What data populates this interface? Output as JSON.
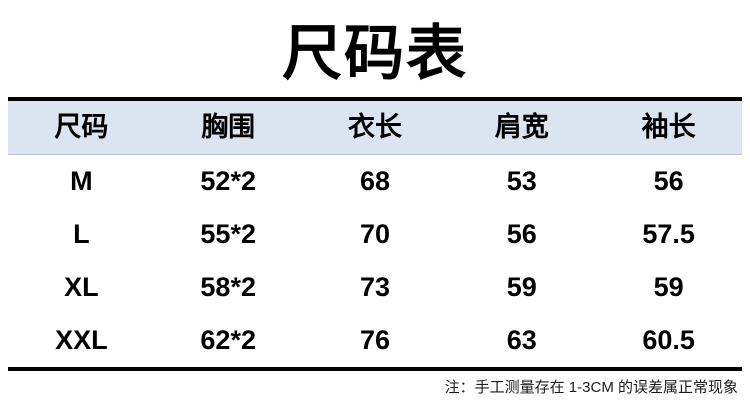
{
  "chart_data": {
    "type": "table",
    "title": "尺码表",
    "columns": [
      "尺码",
      "胸围",
      "衣长",
      "肩宽",
      "袖长"
    ],
    "rows": [
      [
        "M",
        "52*2",
        "68",
        "53",
        "56"
      ],
      [
        "L",
        "55*2",
        "70",
        "56",
        "57.5"
      ],
      [
        "XL",
        "58*2",
        "73",
        "59",
        "59"
      ],
      [
        "XXL",
        "62*2",
        "76",
        "63",
        "60.5"
      ]
    ],
    "note": "注：手工测量存在 1-3CM 的误差属正常现象",
    "layout": {
      "legend": "none",
      "grid": "off",
      "header_row_highlighted": true
    }
  },
  "colors": {
    "header_background": "#dbe5f1",
    "table_border": "#000000",
    "header_divider": "#b9c4d6",
    "text": "#000000"
  }
}
